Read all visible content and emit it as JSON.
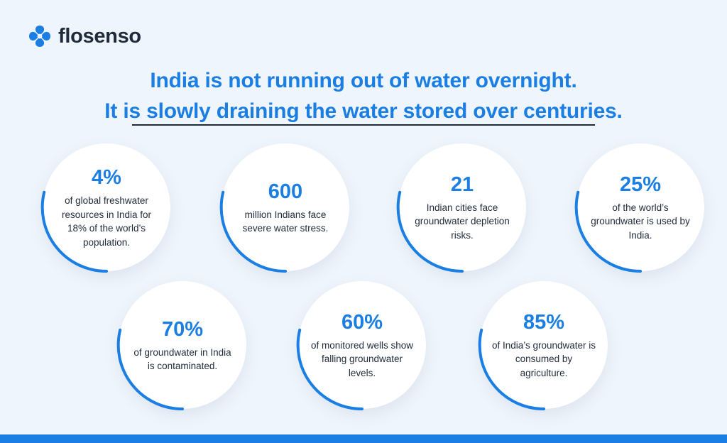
{
  "brand": {
    "name": "flosenso",
    "logo_icon": "flower-logo-icon",
    "color": "#1a7ee3"
  },
  "headline": {
    "line1": "India is not running out of water overnight.",
    "line2": "It is slowly draining the water stored over centuries."
  },
  "stats": [
    {
      "value": "4%",
      "text": "of global freshwater resources in India for 18% of the world’s population."
    },
    {
      "value": "600",
      "text": "million Indians face severe water stress."
    },
    {
      "value": "21",
      "text": "Indian cities face groundwater depletion risks."
    },
    {
      "value": "25%",
      "text": "of the world’s groundwater is used by India."
    },
    {
      "value": "70%",
      "text": "of groundwater in India is contaminated."
    },
    {
      "value": "60%",
      "text": "of monitored wells show falling groundwater levels."
    },
    {
      "value": "85%",
      "text": "of India’s groundwater is consumed by agriculture."
    }
  ],
  "colors": {
    "accent": "#1a7ee3",
    "text": "#1f2a3a",
    "background": "#eff5fc"
  }
}
